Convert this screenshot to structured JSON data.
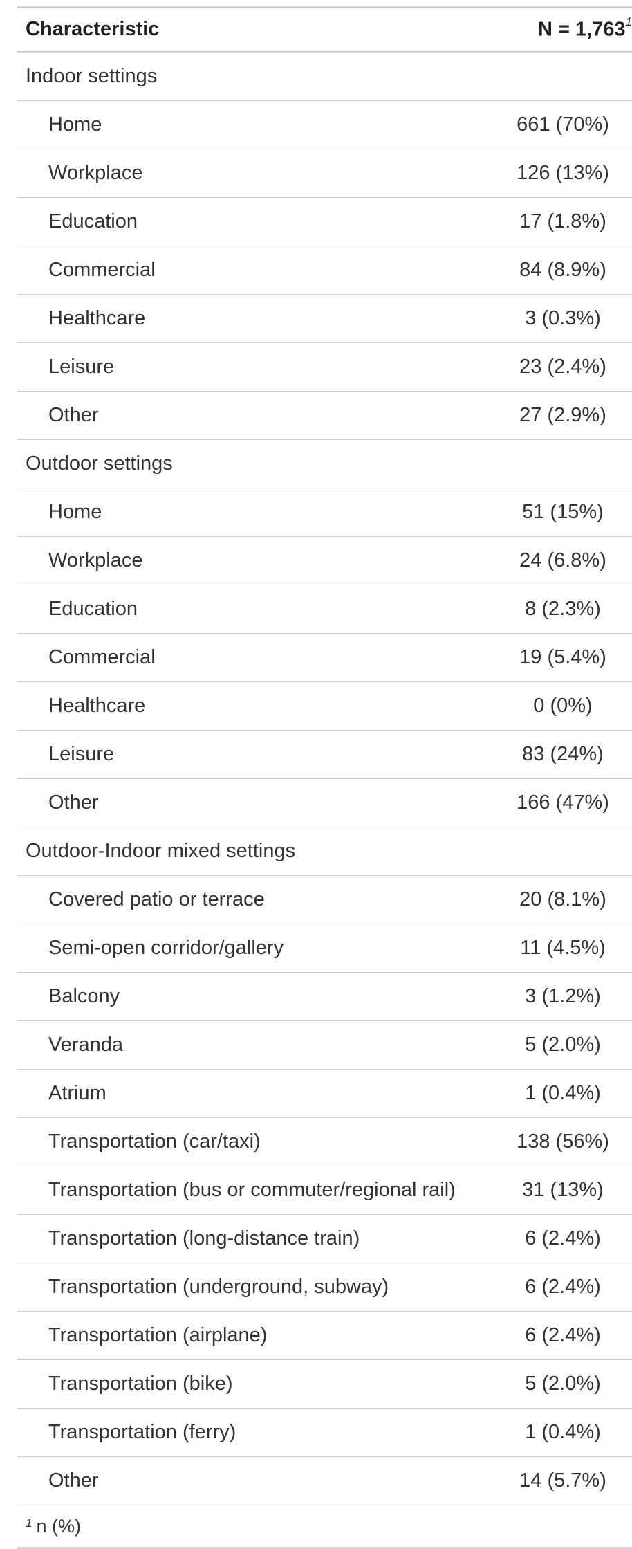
{
  "header": {
    "col1": "Characteristic",
    "col2": "N = 1,763",
    "col2_footnote_mark": "1"
  },
  "groups": [
    {
      "label": "Indoor settings",
      "items": [
        {
          "label": "Home",
          "value": "661 (70%)"
        },
        {
          "label": "Workplace",
          "value": "126 (13%)"
        },
        {
          "label": "Education",
          "value": "17 (1.8%)"
        },
        {
          "label": "Commercial",
          "value": "84 (8.9%)"
        },
        {
          "label": "Healthcare",
          "value": "3 (0.3%)"
        },
        {
          "label": "Leisure",
          "value": "23 (2.4%)"
        },
        {
          "label": "Other",
          "value": "27 (2.9%)"
        }
      ]
    },
    {
      "label": "Outdoor settings",
      "items": [
        {
          "label": "Home",
          "value": "51 (15%)"
        },
        {
          "label": "Workplace",
          "value": "24 (6.8%)"
        },
        {
          "label": "Education",
          "value": "8 (2.3%)"
        },
        {
          "label": "Commercial",
          "value": "19 (5.4%)"
        },
        {
          "label": "Healthcare",
          "value": "0 (0%)"
        },
        {
          "label": "Leisure",
          "value": "83 (24%)"
        },
        {
          "label": "Other",
          "value": "166 (47%)"
        }
      ]
    },
    {
      "label": "Outdoor-Indoor mixed settings",
      "items": [
        {
          "label": "Covered patio or terrace",
          "value": "20 (8.1%)"
        },
        {
          "label": "Semi-open corridor/gallery",
          "value": "11 (4.5%)"
        },
        {
          "label": "Balcony",
          "value": "3 (1.2%)"
        },
        {
          "label": "Veranda",
          "value": "5 (2.0%)"
        },
        {
          "label": "Atrium",
          "value": "1 (0.4%)"
        },
        {
          "label": "Transportation (car/taxi)",
          "value": "138 (56%)"
        },
        {
          "label": "Transportation (bus or commuter/regional rail)",
          "value": "31 (13%)"
        },
        {
          "label": "Transportation (long-distance train)",
          "value": "6 (2.4%)"
        },
        {
          "label": "Transportation (underground, subway)",
          "value": "6 (2.4%)"
        },
        {
          "label": "Transportation (airplane)",
          "value": "6 (2.4%)"
        },
        {
          "label": "Transportation (bike)",
          "value": "5 (2.0%)"
        },
        {
          "label": "Transportation (ferry)",
          "value": "1 (0.4%)"
        },
        {
          "label": "Other",
          "value": "14 (5.7%)"
        }
      ]
    }
  ],
  "footnote": {
    "mark": "1",
    "text": "n (%)"
  }
}
